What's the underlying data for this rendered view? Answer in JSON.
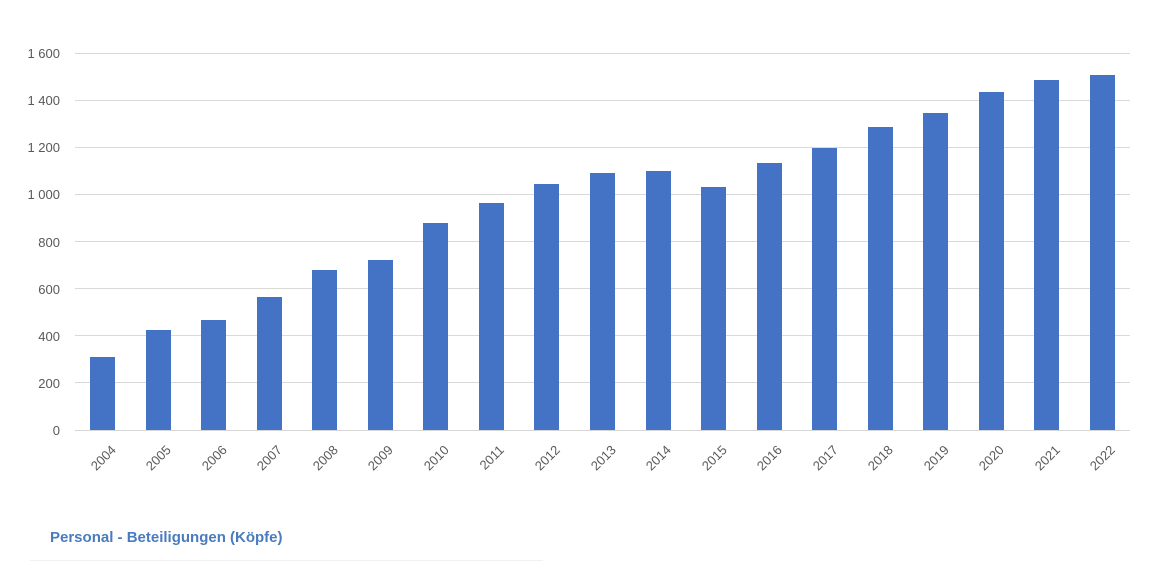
{
  "chart_data": {
    "type": "bar",
    "title": "Personal - Beteiligungen (Köpfe)",
    "categories": [
      "2004",
      "2005",
      "2006",
      "2007",
      "2008",
      "2009",
      "2010",
      "2011",
      "2012",
      "2013",
      "2014",
      "2015",
      "2016",
      "2017",
      "2018",
      "2019",
      "2020",
      "2021",
      "2022"
    ],
    "values": [
      310,
      425,
      465,
      565,
      680,
      720,
      880,
      965,
      1045,
      1090,
      1100,
      1030,
      1135,
      1195,
      1285,
      1345,
      1435,
      1485,
      1505
    ],
    "xlabel": "",
    "ylabel": "",
    "ylim": [
      0,
      1600
    ],
    "ytick_interval": 200,
    "yticks": [
      0,
      200,
      400,
      600,
      800,
      1000,
      1200,
      1400,
      1600
    ],
    "ytick_labels": [
      "0",
      "200",
      "400",
      "600",
      "800",
      "1 000",
      "1 200",
      "1 400",
      "1 600"
    ],
    "grid": true,
    "legend": "none",
    "bar_color": "#4472c4",
    "gridline_color": "#d9d9d9",
    "axis_label_color": "#595959",
    "title_color": "#4a7bbe"
  }
}
